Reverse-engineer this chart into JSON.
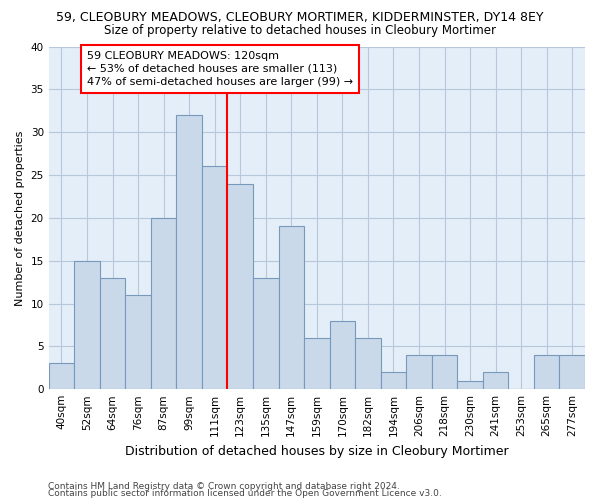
{
  "title": "59, CLEOBURY MEADOWS, CLEOBURY MORTIMER, KIDDERMINSTER, DY14 8EY",
  "subtitle": "Size of property relative to detached houses in Cleobury Mortimer",
  "xlabel": "Distribution of detached houses by size in Cleobury Mortimer",
  "ylabel": "Number of detached properties",
  "bar_labels": [
    "40sqm",
    "52sqm",
    "64sqm",
    "76sqm",
    "87sqm",
    "99sqm",
    "111sqm",
    "123sqm",
    "135sqm",
    "147sqm",
    "159sqm",
    "170sqm",
    "182sqm",
    "194sqm",
    "206sqm",
    "218sqm",
    "230sqm",
    "241sqm",
    "253sqm",
    "265sqm",
    "277sqm"
  ],
  "bar_values": [
    3,
    15,
    13,
    11,
    20,
    32,
    26,
    24,
    13,
    19,
    6,
    8,
    6,
    2,
    4,
    4,
    1,
    2,
    0,
    4,
    4
  ],
  "bar_color": "#c9d9ea",
  "bar_edge_color": "#7799bb",
  "vline_x": 7.0,
  "vline_color": "red",
  "annotation_text": "59 CLEOBURY MEADOWS: 120sqm\n← 53% of detached houses are smaller (113)\n47% of semi-detached houses are larger (99) →",
  "annotation_box_color": "white",
  "annotation_box_edge": "red",
  "ylim": [
    0,
    40
  ],
  "yticks": [
    0,
    5,
    10,
    15,
    20,
    25,
    30,
    35,
    40
  ],
  "grid_color": "#b8c8dc",
  "background_color": "#e4eef8",
  "footer1": "Contains HM Land Registry data © Crown copyright and database right 2024.",
  "footer2": "Contains public sector information licensed under the Open Government Licence v3.0.",
  "title_fontsize": 9,
  "subtitle_fontsize": 8.5,
  "xlabel_fontsize": 9,
  "ylabel_fontsize": 8,
  "tick_fontsize": 7.5,
  "footer_fontsize": 6.5,
  "ann_fontsize": 8
}
